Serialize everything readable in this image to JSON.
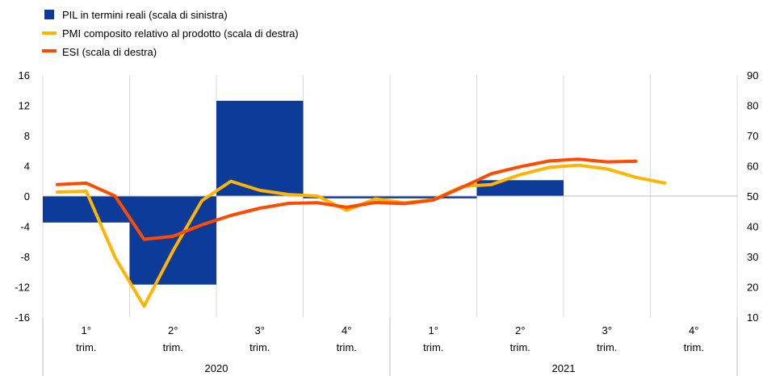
{
  "chart_data": {
    "type": "bar+line",
    "left_axis": {
      "ylim": [
        -16,
        16
      ],
      "ticks": [
        -16,
        -12,
        -8,
        -4,
        0,
        4,
        8,
        12,
        16
      ]
    },
    "right_axis": {
      "ylim": [
        10,
        90
      ],
      "ticks": [
        10,
        20,
        30,
        40,
        50,
        60,
        70,
        80,
        90
      ]
    },
    "quarters": [
      "1°\ntrim.",
      "2°\ntrim.",
      "3°\ntrim.",
      "4°\ntrim.",
      "1°\ntrim.",
      "2°\ntrim.",
      "3°\ntrim.",
      "4°\ntrim."
    ],
    "years": [
      "2020",
      "2021"
    ],
    "series": [
      {
        "name": "PIL in termini reali (scala di sinistra)",
        "type": "bar",
        "axis": "left",
        "color": "#0d3b99",
        "values": [
          -3.5,
          -11.7,
          12.6,
          -0.3,
          -0.3,
          2.1,
          null,
          null
        ]
      },
      {
        "name": "PMI composito relativo al prodotto (scala di destra)",
        "type": "line",
        "axis": "right",
        "color": "#ffb400",
        "months": [
          0,
          1,
          2,
          3,
          4,
          5,
          6,
          7,
          8,
          9,
          10,
          11,
          12,
          13,
          14,
          15,
          16,
          17,
          18,
          19,
          20,
          21,
          22
        ],
        "values": [
          51.3,
          51.6,
          29.7,
          13.6,
          31.9,
          48.5,
          54.9,
          51.9,
          50.5,
          50.0,
          45.3,
          49.1,
          47.8,
          48.8,
          53.2,
          53.8,
          57.1,
          59.5,
          60.2,
          59.0,
          56.2,
          54.3,
          null
        ]
      },
      {
        "name": "ESI (scala di destra)",
        "type": "line",
        "axis": "right",
        "color": "#ff4b00",
        "months": [
          0,
          1,
          2,
          3,
          4,
          5,
          6,
          7,
          8,
          9,
          10,
          11,
          12,
          13,
          14,
          15,
          16,
          17,
          18,
          19,
          20,
          21,
          22
        ],
        "values": [
          53.8,
          54.3,
          50.0,
          35.7,
          36.7,
          40.5,
          43.6,
          46.0,
          47.6,
          47.8,
          46.3,
          47.9,
          47.5,
          48.7,
          52.9,
          57.4,
          59.7,
          61.6,
          62.2,
          61.3,
          61.5,
          null,
          null
        ]
      }
    ],
    "legend_position": "top-left",
    "grid": "vertical"
  }
}
